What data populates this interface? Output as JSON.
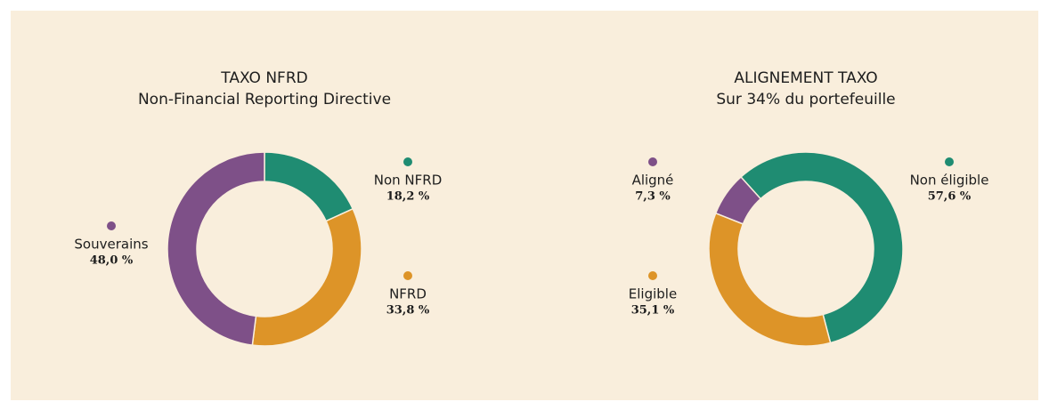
{
  "chart_data": [
    {
      "type": "pie",
      "title": "TAXO NFRD",
      "subtitle": "Non-Financial Reporting Directive",
      "categories": [
        "Non NFRD",
        "NFRD",
        "Souverains"
      ],
      "values": [
        18.2,
        33.8,
        48.0
      ],
      "value_labels": [
        "18,2 %",
        "33,8 %",
        "48,0 %"
      ],
      "colors": [
        "#1f8c72",
        "#dd9428",
        "#7e5088"
      ],
      "start_angle": 0,
      "donut": true
    },
    {
      "type": "pie",
      "title": "ALIGNEMENT TAXO",
      "subtitle": "Sur 34% du portefeuille",
      "categories": [
        "Non éligible",
        "Eligible",
        "Aligné"
      ],
      "values": [
        57.6,
        35.1,
        7.3
      ],
      "value_labels": [
        "57,6 %",
        "35,1 %",
        "7,3 %"
      ],
      "colors": [
        "#1f8c72",
        "#dd9428",
        "#7e5088"
      ],
      "start_angle": -42,
      "donut": true
    }
  ]
}
